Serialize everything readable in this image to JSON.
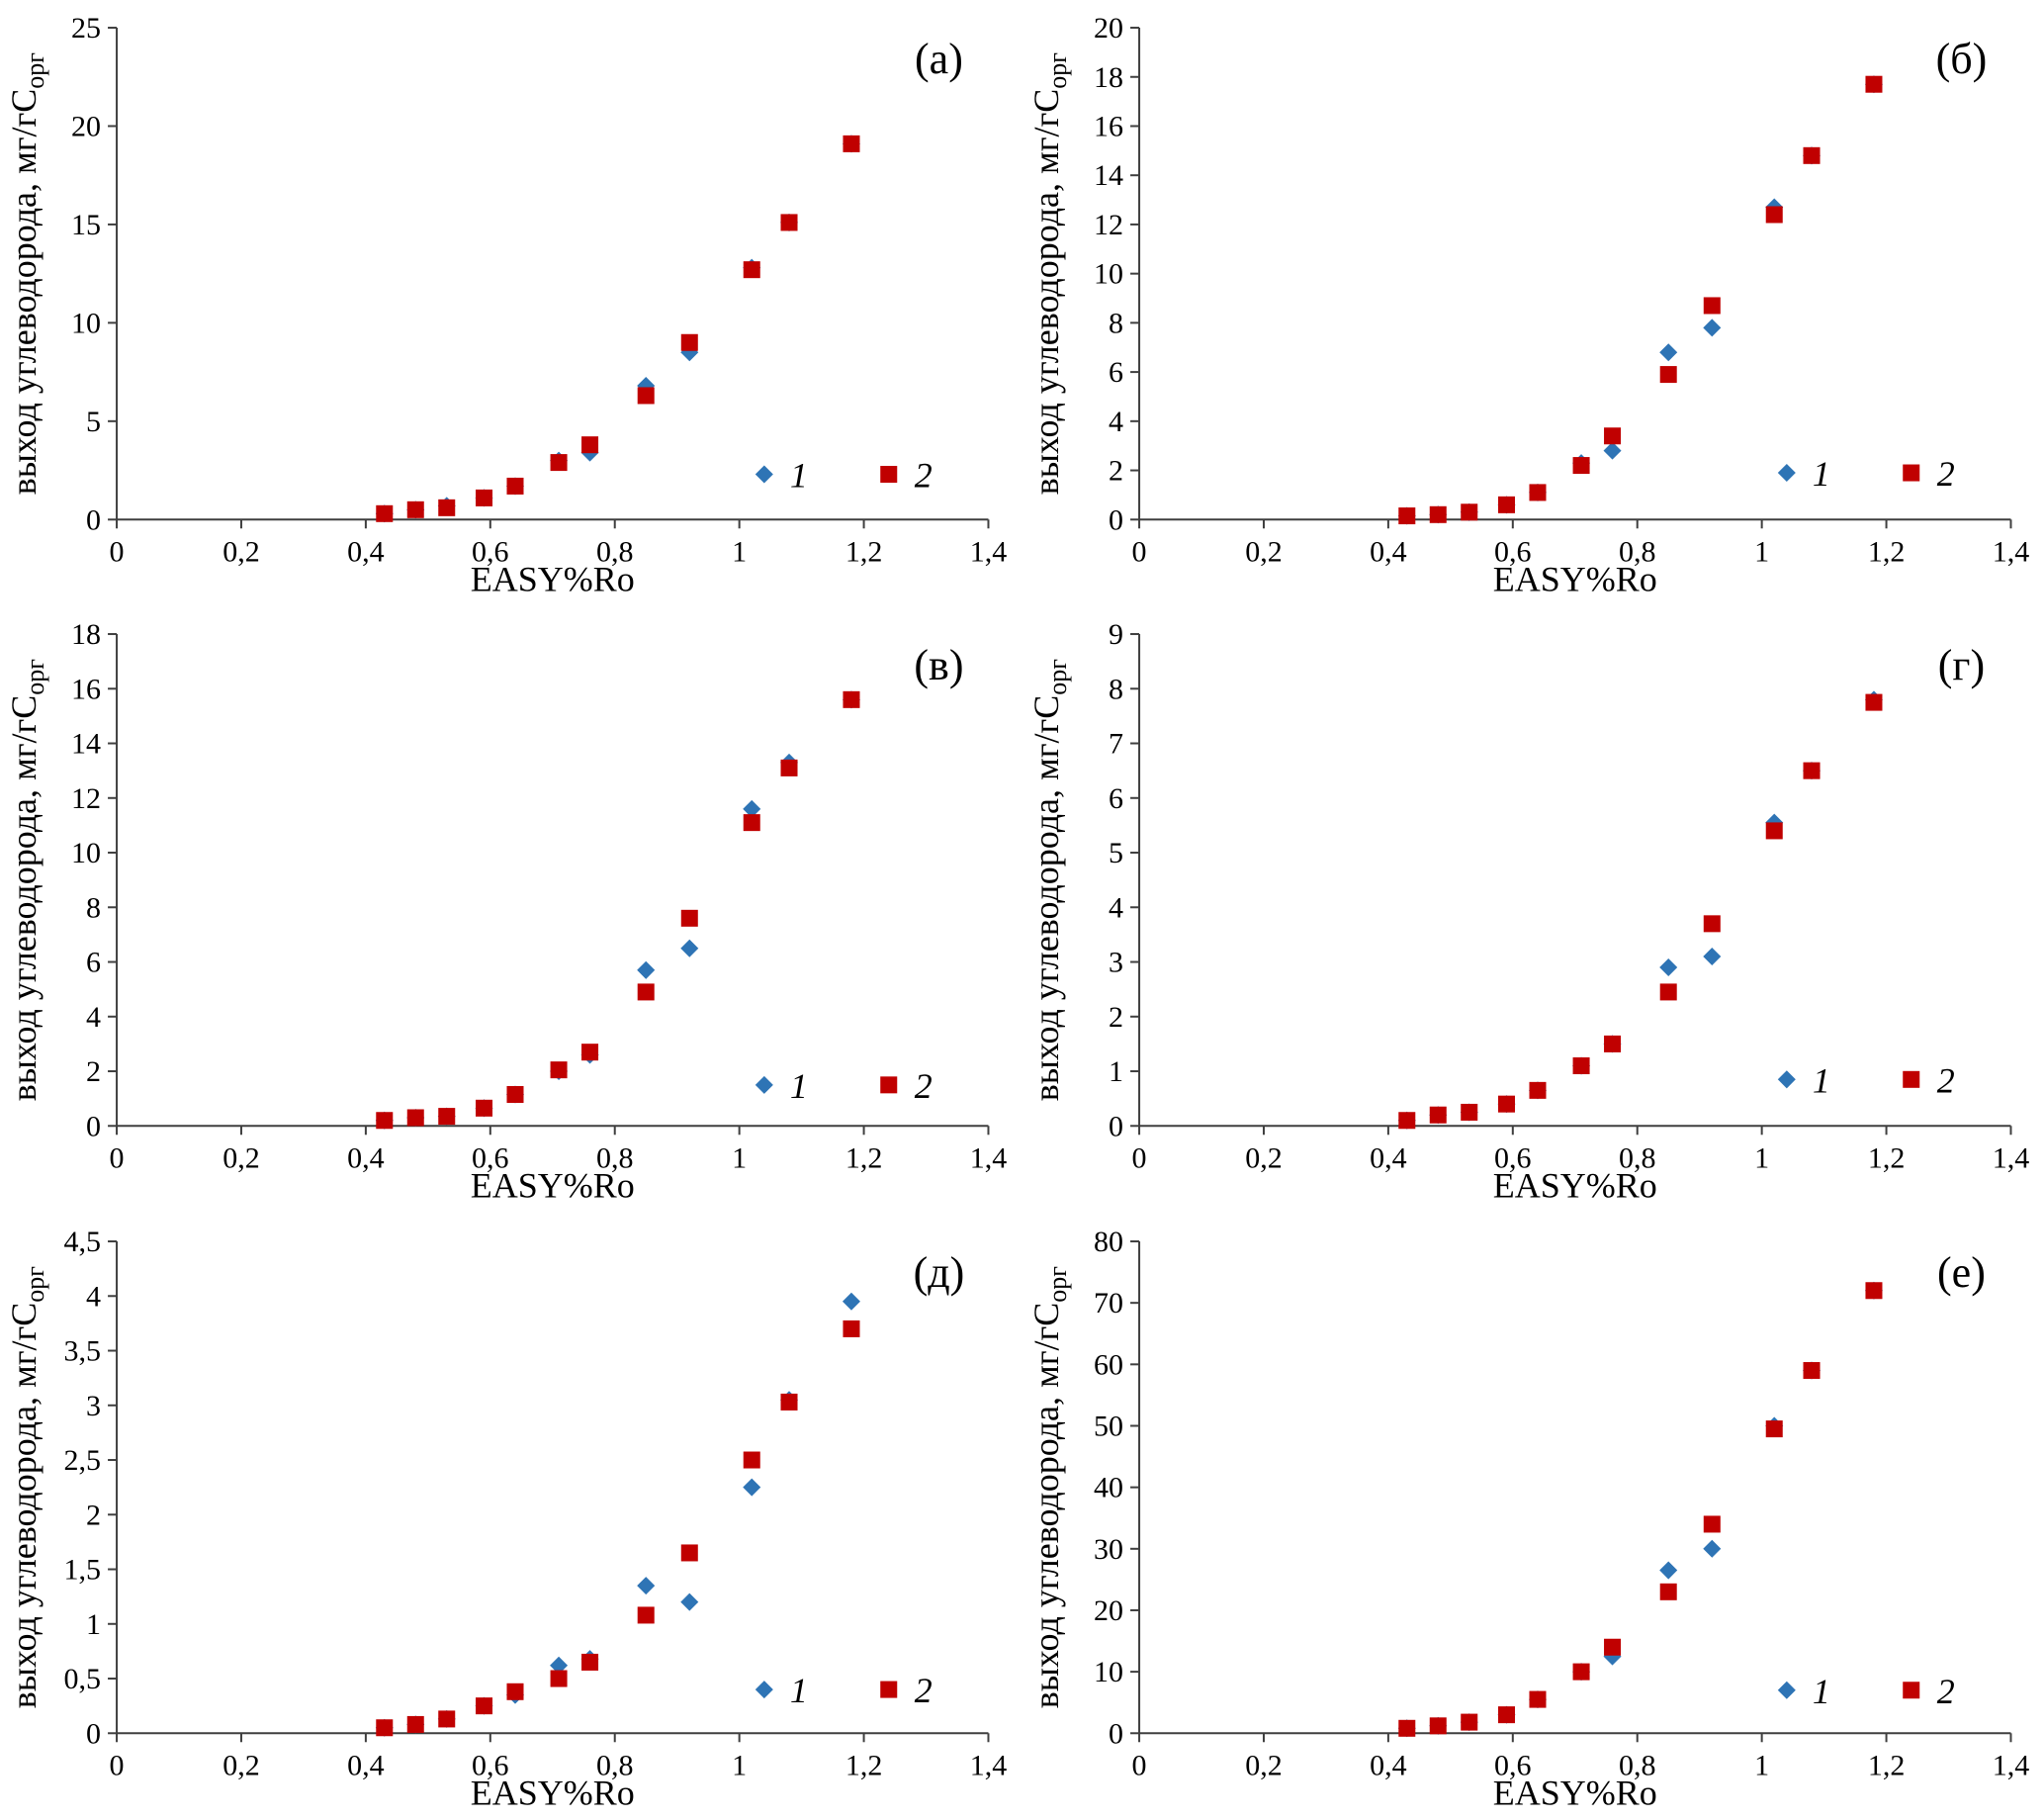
{
  "page": {
    "background": "#ffffff"
  },
  "colors": {
    "series1": "#2E74B5",
    "series2": "#C00000",
    "axis": "#3F3F3F"
  },
  "chart_data": [
    {
      "type": "scatter",
      "panel_label": "(а)",
      "xlabel": "EASY%Ro",
      "ylabel": "выход углеводорода,  мг/гС",
      "ylabel_sub": "орг",
      "xlim": [
        0,
        1.4
      ],
      "xticks": [
        0,
        0.2,
        0.4,
        0.6,
        0.8,
        1,
        1.2,
        1.4
      ],
      "ylim": [
        0,
        25
      ],
      "yticks": [
        0,
        5,
        10,
        15,
        20,
        25
      ],
      "x": [
        0.43,
        0.48,
        0.53,
        0.59,
        0.64,
        0.71,
        0.76,
        0.85,
        0.92,
        1.02,
        1.08,
        1.18
      ],
      "series": [
        {
          "name": "1",
          "marker": "diamond",
          "color": "#2E74B5",
          "values": [
            0.3,
            0.5,
            0.7,
            1.1,
            1.7,
            3.0,
            3.4,
            6.8,
            8.5,
            12.8,
            15.1,
            19.1
          ]
        },
        {
          "name": "2",
          "marker": "square",
          "color": "#C00000",
          "values": [
            0.3,
            0.5,
            0.6,
            1.1,
            1.7,
            2.9,
            3.8,
            6.3,
            9.0,
            12.7,
            15.1,
            19.1
          ]
        }
      ],
      "legend": {
        "y": 2.3,
        "items": [
          {
            "label": "1",
            "x": 1.04
          },
          {
            "label": "2",
            "x": 1.24
          }
        ]
      }
    },
    {
      "type": "scatter",
      "panel_label": "(б)",
      "xlabel": "EASY%Ro",
      "ylabel": "выход углеводорода,  мг/гС",
      "ylabel_sub": "орг",
      "xlim": [
        0,
        1.4
      ],
      "xticks": [
        0,
        0.2,
        0.4,
        0.6,
        0.8,
        1,
        1.2,
        1.4
      ],
      "ylim": [
        0,
        20
      ],
      "yticks": [
        0,
        2,
        4,
        6,
        8,
        10,
        12,
        14,
        16,
        18,
        20
      ],
      "x": [
        0.43,
        0.48,
        0.53,
        0.59,
        0.64,
        0.71,
        0.76,
        0.85,
        0.92,
        1.02,
        1.08,
        1.18
      ],
      "series": [
        {
          "name": "1",
          "marker": "diamond",
          "color": "#2E74B5",
          "values": [
            0.15,
            0.2,
            0.3,
            0.6,
            1.1,
            2.3,
            2.8,
            6.8,
            7.8,
            12.7,
            14.8,
            17.7
          ]
        },
        {
          "name": "2",
          "marker": "square",
          "color": "#C00000",
          "values": [
            0.15,
            0.2,
            0.3,
            0.6,
            1.1,
            2.2,
            3.4,
            5.9,
            8.7,
            12.4,
            14.8,
            17.7
          ]
        }
      ],
      "legend": {
        "y": 1.9,
        "items": [
          {
            "label": "1",
            "x": 1.04
          },
          {
            "label": "2",
            "x": 1.24
          }
        ]
      }
    },
    {
      "type": "scatter",
      "panel_label": "(в)",
      "xlabel": "EASY%Ro",
      "ylabel": "выход углеводорода,  мг/гС",
      "ylabel_sub": "орг",
      "xlim": [
        0,
        1.4
      ],
      "xticks": [
        0,
        0.2,
        0.4,
        0.6,
        0.8,
        1,
        1.2,
        1.4
      ],
      "ylim": [
        0,
        18
      ],
      "yticks": [
        0,
        2,
        4,
        6,
        8,
        10,
        12,
        14,
        16,
        18
      ],
      "x": [
        0.43,
        0.48,
        0.53,
        0.59,
        0.64,
        0.71,
        0.76,
        0.85,
        0.92,
        1.02,
        1.08,
        1.18
      ],
      "series": [
        {
          "name": "1",
          "marker": "diamond",
          "color": "#2E74B5",
          "values": [
            0.2,
            0.3,
            0.35,
            0.65,
            1.15,
            2.0,
            2.6,
            5.7,
            6.5,
            11.6,
            13.3,
            15.6
          ]
        },
        {
          "name": "2",
          "marker": "square",
          "color": "#C00000",
          "values": [
            0.2,
            0.3,
            0.35,
            0.65,
            1.15,
            2.05,
            2.7,
            4.9,
            7.6,
            11.1,
            13.1,
            15.6
          ]
        }
      ],
      "legend": {
        "y": 1.5,
        "items": [
          {
            "label": "1",
            "x": 1.04
          },
          {
            "label": "2",
            "x": 1.24
          }
        ]
      }
    },
    {
      "type": "scatter",
      "panel_label": "(г)",
      "xlabel": "EASY%Ro",
      "ylabel": "выход углеводорода,  мг/гС",
      "ylabel_sub": "орг",
      "xlim": [
        0,
        1.4
      ],
      "xticks": [
        0,
        0.2,
        0.4,
        0.6,
        0.8,
        1,
        1.2,
        1.4
      ],
      "ylim": [
        0,
        9
      ],
      "yticks": [
        0,
        1,
        2,
        3,
        4,
        5,
        6,
        7,
        8,
        9
      ],
      "x": [
        0.43,
        0.48,
        0.53,
        0.59,
        0.64,
        0.71,
        0.76,
        0.85,
        0.92,
        1.02,
        1.08,
        1.18
      ],
      "series": [
        {
          "name": "1",
          "marker": "diamond",
          "color": "#2E74B5",
          "values": [
            0.1,
            0.2,
            0.25,
            0.4,
            0.65,
            1.1,
            1.5,
            2.9,
            3.1,
            5.55,
            6.5,
            7.8
          ]
        },
        {
          "name": "2",
          "marker": "square",
          "color": "#C00000",
          "values": [
            0.1,
            0.2,
            0.25,
            0.4,
            0.65,
            1.1,
            1.5,
            2.45,
            3.7,
            5.4,
            6.5,
            7.75
          ]
        }
      ],
      "legend": {
        "y": 0.85,
        "items": [
          {
            "label": "1",
            "x": 1.04
          },
          {
            "label": "2",
            "x": 1.24
          }
        ]
      }
    },
    {
      "type": "scatter",
      "panel_label": "(д)",
      "xlabel": "EASY%Ro",
      "ylabel": "выход углеводорода,  мг/гС",
      "ylabel_sub": "орг",
      "xlim": [
        0,
        1.4
      ],
      "xticks": [
        0,
        0.2,
        0.4,
        0.6,
        0.8,
        1,
        1.2,
        1.4
      ],
      "ylim": [
        0,
        4.5
      ],
      "yticks": [
        0,
        0.5,
        1,
        1.5,
        2,
        2.5,
        3,
        3.5,
        4,
        4.5
      ],
      "x": [
        0.43,
        0.48,
        0.53,
        0.59,
        0.64,
        0.71,
        0.76,
        0.85,
        0.92,
        1.02,
        1.08,
        1.18
      ],
      "series": [
        {
          "name": "1",
          "marker": "diamond",
          "color": "#2E74B5",
          "values": [
            0.05,
            0.08,
            0.13,
            0.25,
            0.35,
            0.62,
            0.68,
            1.35,
            1.2,
            2.25,
            3.05,
            3.95
          ]
        },
        {
          "name": "2",
          "marker": "square",
          "color": "#C00000",
          "values": [
            0.05,
            0.08,
            0.13,
            0.25,
            0.38,
            0.5,
            0.65,
            1.08,
            1.65,
            2.5,
            3.03,
            3.7
          ]
        }
      ],
      "legend": {
        "y": 0.4,
        "items": [
          {
            "label": "1",
            "x": 1.04
          },
          {
            "label": "2",
            "x": 1.24
          }
        ]
      }
    },
    {
      "type": "scatter",
      "panel_label": "(е)",
      "xlabel": "EASY%Ro",
      "ylabel": "выход углеводорода,  мг/гС",
      "ylabel_sub": "орг",
      "xlim": [
        0,
        1.4
      ],
      "xticks": [
        0,
        0.2,
        0.4,
        0.6,
        0.8,
        1,
        1.2,
        1.4
      ],
      "ylim": [
        0,
        80
      ],
      "yticks": [
        0,
        10,
        20,
        30,
        40,
        50,
        60,
        70,
        80
      ],
      "x": [
        0.43,
        0.48,
        0.53,
        0.59,
        0.64,
        0.71,
        0.76,
        0.85,
        0.92,
        1.02,
        1.08,
        1.18
      ],
      "series": [
        {
          "name": "1",
          "marker": "diamond",
          "color": "#2E74B5",
          "values": [
            0.8,
            1.2,
            1.8,
            3,
            5.5,
            10,
            12.5,
            26.5,
            30,
            50,
            59,
            72
          ]
        },
        {
          "name": "2",
          "marker": "square",
          "color": "#C00000",
          "values": [
            0.8,
            1.2,
            1.8,
            3,
            5.5,
            10,
            14,
            23,
            34,
            49.5,
            59,
            72
          ]
        }
      ],
      "legend": {
        "y": 7,
        "items": [
          {
            "label": "1",
            "x": 1.04
          },
          {
            "label": "2",
            "x": 1.24
          }
        ]
      }
    }
  ]
}
